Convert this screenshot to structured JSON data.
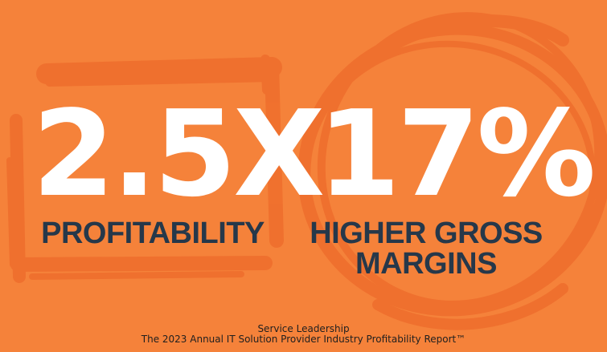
{
  "colors": {
    "background": "#f5823a",
    "scribble": "#ef6a2a",
    "stat_text": "#ffffff",
    "label_text": "#26384a"
  },
  "left_stat": {
    "value": "2.5X",
    "label": "PROFITABILITY"
  },
  "right_stat": {
    "value": "17%",
    "label_line1": "HIGHER GROSS",
    "label_line2": "MARGINS"
  },
  "footer": {
    "line1": "Service Leadership",
    "line2": "The 2023 Annual IT Solution Provider Industry Profitability Report™"
  }
}
